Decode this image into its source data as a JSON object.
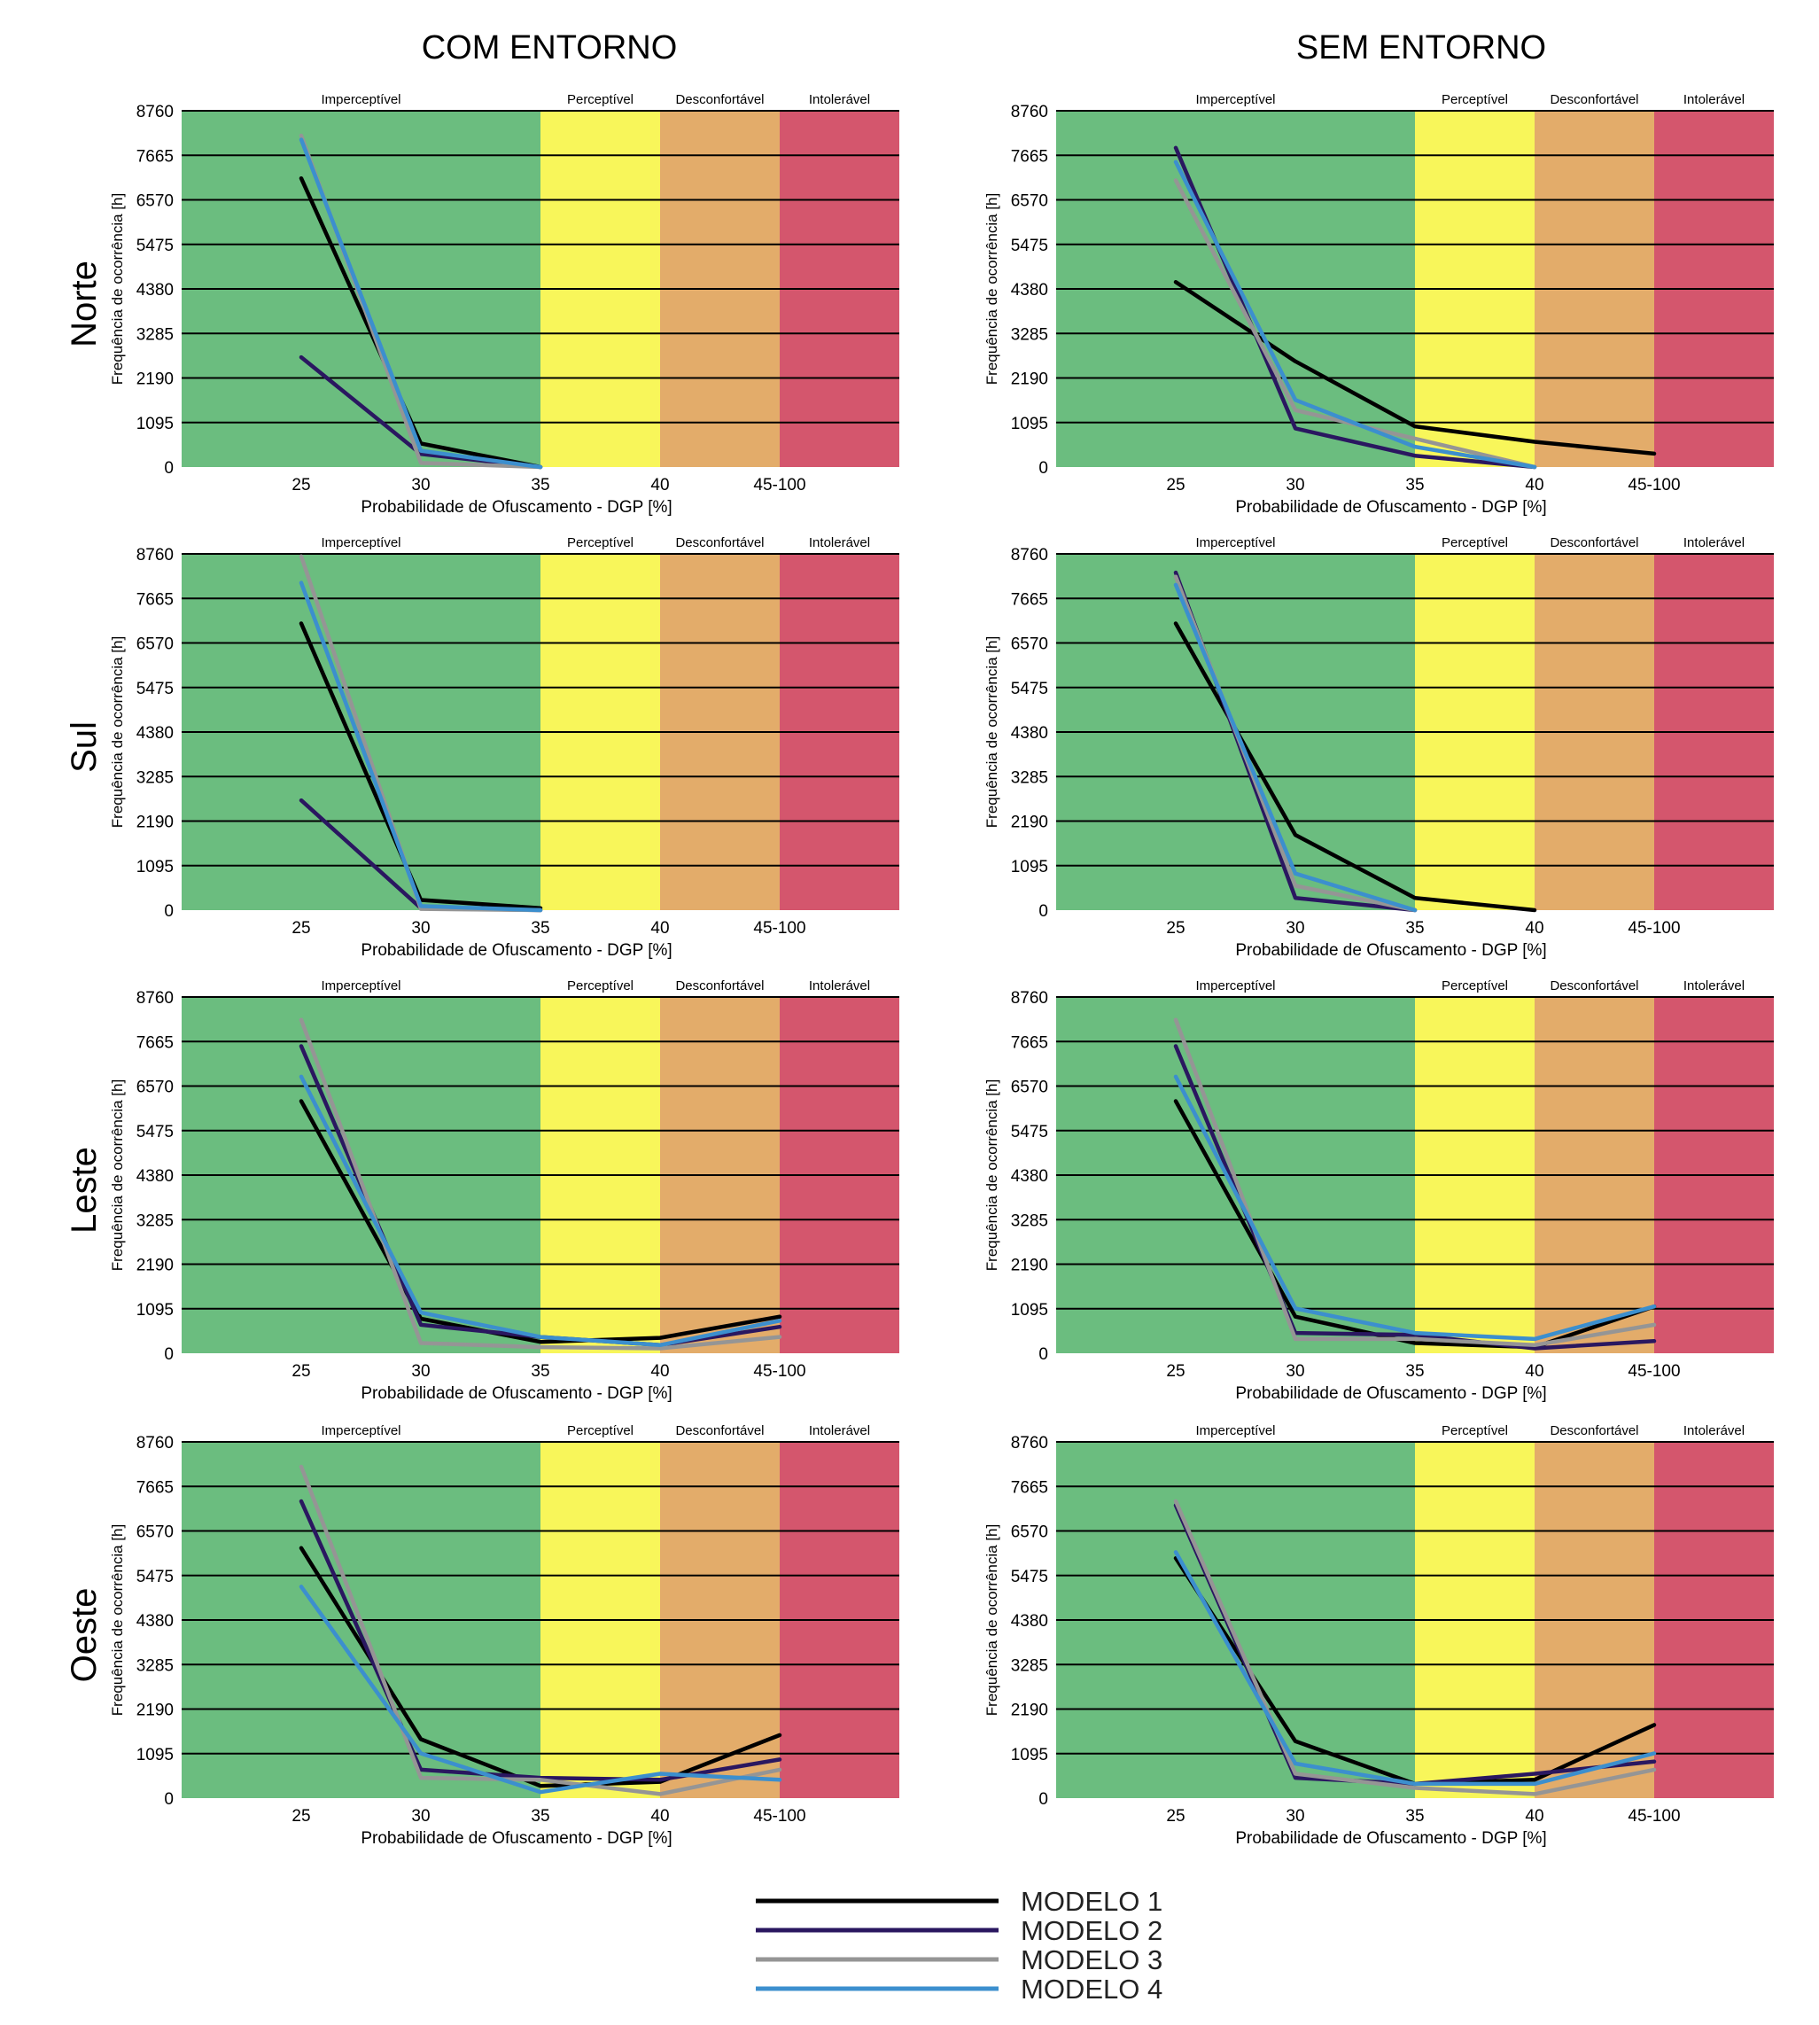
{
  "columns": [
    "COM ENTORNO",
    "SEM ENTORNO"
  ],
  "rows": [
    "Norte",
    "Sul",
    "Leste",
    "Oeste"
  ],
  "shared": {
    "xlabel": "Probabilidade de Ofuscamento - DGP [%]",
    "ylabel": "Frequência de ocorrência [h]",
    "x_ticks": [
      "25",
      "30",
      "35",
      "40",
      "45-100"
    ],
    "y_ticks": [
      0,
      1095,
      2190,
      3285,
      4380,
      5475,
      6570,
      7665,
      8760
    ],
    "y_tick_labels": [
      "0",
      "1095",
      "2190",
      "3285",
      "4380",
      "5475",
      "6570",
      "7665",
      "8760"
    ],
    "zones": [
      {
        "label": "Imperceptível",
        "color": "#6bbd7f"
      },
      {
        "label": "Perceptível",
        "color": "#f8f65a"
      },
      {
        "label": "Desconfortável",
        "color": "#e3ac6a"
      },
      {
        "label": "Intolerável",
        "color": "#d4566d"
      }
    ],
    "series_colors": [
      "#000000",
      "#2a1760",
      "#959595",
      "#3c8fce"
    ]
  },
  "legend": [
    "MODELO 1",
    "MODELO 2",
    "MODELO 3",
    "MODELO 4"
  ],
  "chart_data": [
    {
      "type": "line",
      "panel": "COM ENTORNO - Norte",
      "categories": [
        "25",
        "30",
        "35",
        "40",
        "45-100"
      ],
      "ylim": [
        0,
        8760
      ],
      "grid": true,
      "xlabel": "Probabilidade de Ofuscamento - DGP [%]",
      "ylabel": "Frequência de ocorrência [h]",
      "series": [
        {
          "name": "MODELO 1",
          "values": [
            7100,
            580,
            0,
            null,
            null
          ]
        },
        {
          "name": "MODELO 2",
          "values": [
            2700,
            320,
            0,
            null,
            null
          ]
        },
        {
          "name": "MODELO 3",
          "values": [
            8150,
            100,
            0,
            null,
            null
          ]
        },
        {
          "name": "MODELO 4",
          "values": [
            8050,
            400,
            0,
            null,
            null
          ]
        }
      ]
    },
    {
      "type": "line",
      "panel": "SEM ENTORNO - Norte",
      "categories": [
        "25",
        "30",
        "35",
        "40",
        "45-100"
      ],
      "ylim": [
        0,
        8760
      ],
      "grid": true,
      "xlabel": "Probabilidade de Ofuscamento - DGP [%]",
      "ylabel": "Frequência de ocorrência [h]",
      "series": [
        {
          "name": "MODELO 1",
          "values": [
            4550,
            2600,
            1000,
            620,
            330
          ]
        },
        {
          "name": "MODELO 2",
          "values": [
            7850,
            950,
            280,
            0,
            null
          ]
        },
        {
          "name": "MODELO 3",
          "values": [
            7050,
            1400,
            700,
            0,
            null
          ]
        },
        {
          "name": "MODELO 4",
          "values": [
            7500,
            1650,
            500,
            0,
            null
          ]
        }
      ]
    },
    {
      "type": "line",
      "panel": "COM ENTORNO - Sul",
      "categories": [
        "25",
        "30",
        "35",
        "40",
        "45-100"
      ],
      "ylim": [
        0,
        8760
      ],
      "grid": true,
      "xlabel": "Probabilidade de Ofuscamento - DGP [%]",
      "ylabel": "Frequência de ocorrência [h]",
      "series": [
        {
          "name": "MODELO 1",
          "values": [
            7050,
            250,
            50,
            null,
            null
          ]
        },
        {
          "name": "MODELO 2",
          "values": [
            2700,
            50,
            0,
            null,
            null
          ]
        },
        {
          "name": "MODELO 3",
          "values": [
            8700,
            30,
            0,
            null,
            null
          ]
        },
        {
          "name": "MODELO 4",
          "values": [
            8050,
            100,
            0,
            null,
            null
          ]
        }
      ]
    },
    {
      "type": "line",
      "panel": "SEM ENTORNO - Sul",
      "categories": [
        "25",
        "30",
        "35",
        "40",
        "45-100"
      ],
      "ylim": [
        0,
        8760
      ],
      "grid": true,
      "xlabel": "Probabilidade de Ofuscamento - DGP [%]",
      "ylabel": "Frequência de ocorrência [h]",
      "series": [
        {
          "name": "MODELO 1",
          "values": [
            7050,
            1850,
            300,
            0,
            null
          ]
        },
        {
          "name": "MODELO 2",
          "values": [
            8300,
            300,
            0,
            null,
            null
          ]
        },
        {
          "name": "MODELO 3",
          "values": [
            8200,
            600,
            0,
            null,
            null
          ]
        },
        {
          "name": "MODELO 4",
          "values": [
            8000,
            900,
            0,
            null,
            null
          ]
        }
      ]
    },
    {
      "type": "line",
      "panel": "COM ENTORNO - Leste",
      "categories": [
        "25",
        "30",
        "35",
        "40",
        "45-100"
      ],
      "ylim": [
        0,
        8760
      ],
      "grid": true,
      "xlabel": "Probabilidade de Ofuscamento - DGP [%]",
      "ylabel": "Frequência de ocorrência [h]",
      "series": [
        {
          "name": "MODELO 1",
          "values": [
            6200,
            850,
            280,
            380,
            900
          ]
        },
        {
          "name": "MODELO 2",
          "values": [
            7550,
            700,
            400,
            200,
            650
          ]
        },
        {
          "name": "MODELO 3",
          "values": [
            8200,
            250,
            150,
            120,
            400
          ]
        },
        {
          "name": "MODELO 4",
          "values": [
            6800,
            1000,
            400,
            200,
            800
          ]
        }
      ]
    },
    {
      "type": "line",
      "panel": "SEM ENTORNO - Leste",
      "categories": [
        "25",
        "30",
        "35",
        "40",
        "45-100"
      ],
      "ylim": [
        0,
        8760
      ],
      "grid": true,
      "xlabel": "Probabilidade de Ofuscamento - DGP [%]",
      "ylabel": "Frequência de ocorrência [h]",
      "series": [
        {
          "name": "MODELO 1",
          "values": [
            6200,
            900,
            250,
            150,
            1150
          ]
        },
        {
          "name": "MODELO 2",
          "values": [
            7550,
            500,
            450,
            120,
            300
          ]
        },
        {
          "name": "MODELO 3",
          "values": [
            8200,
            350,
            350,
            200,
            700
          ]
        },
        {
          "name": "MODELO 4",
          "values": [
            6800,
            1100,
            500,
            350,
            1150
          ]
        }
      ]
    },
    {
      "type": "line",
      "panel": "COM ENTORNO - Oeste",
      "categories": [
        "25",
        "30",
        "35",
        "40",
        "45-100"
      ],
      "ylim": [
        0,
        8760
      ],
      "grid": true,
      "xlabel": "Probabilidade de Ofuscamento - DGP [%]",
      "ylabel": "Frequência de ocorrência [h]",
      "series": [
        {
          "name": "MODELO 1",
          "values": [
            6150,
            1450,
            300,
            400,
            1550
          ]
        },
        {
          "name": "MODELO 2",
          "values": [
            7300,
            700,
            500,
            450,
            950
          ]
        },
        {
          "name": "MODELO 3",
          "values": [
            8150,
            500,
            450,
            100,
            700
          ]
        },
        {
          "name": "MODELO 4",
          "values": [
            5200,
            1100,
            150,
            600,
            450
          ]
        }
      ]
    },
    {
      "type": "line",
      "panel": "SEM ENTORNO - Oeste",
      "categories": [
        "25",
        "30",
        "35",
        "40",
        "45-100"
      ],
      "ylim": [
        0,
        8760
      ],
      "grid": true,
      "xlabel": "Probabilidade de Ofuscamento - DGP [%]",
      "ylabel": "Frequência de ocorrência [h]",
      "series": [
        {
          "name": "MODELO 1",
          "values": [
            5900,
            1400,
            350,
            450,
            1800
          ]
        },
        {
          "name": "MODELO 2",
          "values": [
            7200,
            500,
            350,
            600,
            900
          ]
        },
        {
          "name": "MODELO 3",
          "values": [
            7300,
            600,
            250,
            100,
            700
          ]
        },
        {
          "name": "MODELO 4",
          "values": [
            6050,
            850,
            350,
            350,
            1100
          ]
        }
      ]
    }
  ]
}
